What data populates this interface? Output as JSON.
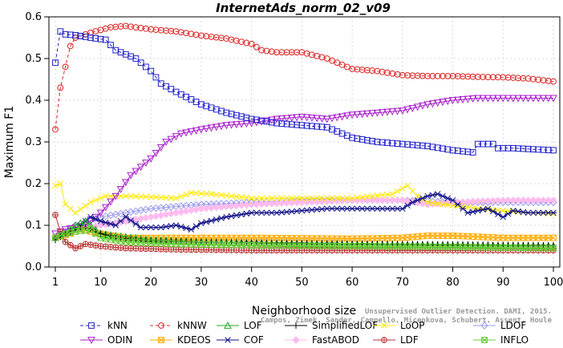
{
  "chart_data": {
    "type": "line",
    "title": "InternetAds_norm_02_v09",
    "xlabel": "Neighborhood size",
    "ylabel": "Maximum F1",
    "xlim": [
      1,
      100
    ],
    "ylim": [
      0,
      0.6
    ],
    "xticks": [
      1,
      10,
      20,
      30,
      40,
      50,
      60,
      70,
      80,
      90,
      100
    ],
    "yticks": [
      0.0,
      0.1,
      0.2,
      0.3,
      0.4,
      0.5,
      0.6
    ],
    "legend_position": "bottom",
    "series": [
      {
        "name": "kNN",
        "color": "#2222cc",
        "marker": "square",
        "dashed": true,
        "step": 1,
        "keyframes": [
          [
            1,
            0.49
          ],
          [
            2,
            0.565
          ],
          [
            3,
            0.558
          ],
          [
            5,
            0.556
          ],
          [
            8,
            0.55
          ],
          [
            11,
            0.545
          ],
          [
            13,
            0.52
          ],
          [
            17,
            0.5
          ],
          [
            20,
            0.47
          ],
          [
            22,
            0.44
          ],
          [
            25,
            0.42
          ],
          [
            30,
            0.39
          ],
          [
            35,
            0.37
          ],
          [
            40,
            0.355
          ],
          [
            45,
            0.345
          ],
          [
            50,
            0.34
          ],
          [
            55,
            0.335
          ],
          [
            60,
            0.31
          ],
          [
            65,
            0.3
          ],
          [
            70,
            0.295
          ],
          [
            75,
            0.29
          ],
          [
            80,
            0.28
          ],
          [
            84,
            0.275
          ],
          [
            85,
            0.295
          ],
          [
            88,
            0.295
          ],
          [
            89,
            0.285
          ],
          [
            92,
            0.285
          ],
          [
            95,
            0.283
          ],
          [
            100,
            0.28
          ]
        ]
      },
      {
        "name": "kNNW",
        "color": "#dd2222",
        "marker": "circle",
        "dashed": true,
        "step": 1,
        "keyframes": [
          [
            1,
            0.33
          ],
          [
            2,
            0.43
          ],
          [
            3,
            0.48
          ],
          [
            4,
            0.53
          ],
          [
            5,
            0.55
          ],
          [
            8,
            0.562
          ],
          [
            12,
            0.575
          ],
          [
            15,
            0.578
          ],
          [
            20,
            0.57
          ],
          [
            25,
            0.565
          ],
          [
            30,
            0.555
          ],
          [
            35,
            0.548
          ],
          [
            40,
            0.535
          ],
          [
            42,
            0.52
          ],
          [
            45,
            0.515
          ],
          [
            50,
            0.515
          ],
          [
            55,
            0.5
          ],
          [
            60,
            0.475
          ],
          [
            65,
            0.47
          ],
          [
            70,
            0.46
          ],
          [
            75,
            0.458
          ],
          [
            80,
            0.458
          ],
          [
            85,
            0.456
          ],
          [
            90,
            0.455
          ],
          [
            95,
            0.452
          ],
          [
            100,
            0.445
          ]
        ]
      },
      {
        "name": "LOF",
        "color": "#22aa22",
        "marker": "triangle-up",
        "dashed": false,
        "step": 1,
        "keyframes": [
          [
            1,
            0.07
          ],
          [
            3,
            0.08
          ],
          [
            5,
            0.1
          ],
          [
            7,
            0.11
          ],
          [
            10,
            0.08
          ],
          [
            13,
            0.075
          ],
          [
            20,
            0.065
          ],
          [
            30,
            0.06
          ],
          [
            50,
            0.055
          ],
          [
            70,
            0.053
          ],
          [
            100,
            0.05
          ]
        ]
      },
      {
        "name": "SimplifiedLOF",
        "color": "#000000",
        "marker": "plus",
        "dashed": false,
        "step": 1,
        "keyframes": [
          [
            1,
            0.065
          ],
          [
            3,
            0.08
          ],
          [
            5,
            0.09
          ],
          [
            7,
            0.095
          ],
          [
            10,
            0.08
          ],
          [
            13,
            0.07
          ],
          [
            20,
            0.062
          ],
          [
            30,
            0.06
          ],
          [
            50,
            0.058
          ],
          [
            70,
            0.055
          ],
          [
            100,
            0.052
          ]
        ]
      },
      {
        "name": "LoOP",
        "color": "#ffe800",
        "marker": "x",
        "dashed": false,
        "step": 1,
        "keyframes": [
          [
            1,
            0.195
          ],
          [
            2,
            0.2
          ],
          [
            3,
            0.15
          ],
          [
            5,
            0.13
          ],
          [
            8,
            0.155
          ],
          [
            11,
            0.17
          ],
          [
            15,
            0.17
          ],
          [
            20,
            0.168
          ],
          [
            25,
            0.165
          ],
          [
            28,
            0.178
          ],
          [
            32,
            0.175
          ],
          [
            40,
            0.165
          ],
          [
            50,
            0.165
          ],
          [
            60,
            0.165
          ],
          [
            68,
            0.175
          ],
          [
            71,
            0.195
          ],
          [
            73,
            0.17
          ],
          [
            75,
            0.155
          ],
          [
            78,
            0.15
          ],
          [
            82,
            0.145
          ],
          [
            85,
            0.14
          ],
          [
            90,
            0.135
          ],
          [
            95,
            0.13
          ],
          [
            100,
            0.128
          ]
        ]
      },
      {
        "name": "LDOF",
        "color": "#9999ee",
        "marker": "diamond",
        "dashed": false,
        "step": 1,
        "keyframes": [
          [
            1,
            0.07
          ],
          [
            5,
            0.1
          ],
          [
            10,
            0.12
          ],
          [
            15,
            0.13
          ],
          [
            20,
            0.14
          ],
          [
            30,
            0.15
          ],
          [
            40,
            0.155
          ],
          [
            50,
            0.16
          ],
          [
            60,
            0.16
          ],
          [
            70,
            0.16
          ],
          [
            80,
            0.155
          ],
          [
            90,
            0.155
          ],
          [
            100,
            0.155
          ]
        ]
      },
      {
        "name": "ODIN",
        "color": "#aa22cc",
        "marker": "triangle-down",
        "dashed": false,
        "step": 1,
        "keyframes": [
          [
            1,
            0.08
          ],
          [
            3,
            0.09
          ],
          [
            7,
            0.1
          ],
          [
            10,
            0.13
          ],
          [
            13,
            0.17
          ],
          [
            16,
            0.22
          ],
          [
            20,
            0.26
          ],
          [
            23,
            0.3
          ],
          [
            26,
            0.32
          ],
          [
            30,
            0.33
          ],
          [
            35,
            0.34
          ],
          [
            40,
            0.345
          ],
          [
            45,
            0.355
          ],
          [
            50,
            0.36
          ],
          [
            55,
            0.355
          ],
          [
            60,
            0.365
          ],
          [
            65,
            0.37
          ],
          [
            70,
            0.375
          ],
          [
            75,
            0.39
          ],
          [
            80,
            0.4
          ],
          [
            85,
            0.405
          ],
          [
            90,
            0.405
          ],
          [
            95,
            0.405
          ],
          [
            100,
            0.405
          ]
        ]
      },
      {
        "name": "KDEOS",
        "color": "#ffaa00",
        "marker": "box-x",
        "dashed": false,
        "step": 1,
        "keyframes": [
          [
            1,
            0.07
          ],
          [
            4,
            0.08
          ],
          [
            6,
            0.09
          ],
          [
            10,
            0.08
          ],
          [
            15,
            0.07
          ],
          [
            25,
            0.07
          ],
          [
            40,
            0.07
          ],
          [
            60,
            0.068
          ],
          [
            70,
            0.07
          ],
          [
            75,
            0.075
          ],
          [
            80,
            0.075
          ],
          [
            90,
            0.07
          ],
          [
            100,
            0.07
          ]
        ]
      },
      {
        "name": "COF",
        "color": "#111188",
        "marker": "star",
        "dashed": false,
        "step": 1,
        "keyframes": [
          [
            1,
            0.07
          ],
          [
            4,
            0.08
          ],
          [
            6,
            0.1
          ],
          [
            8,
            0.12
          ],
          [
            10,
            0.11
          ],
          [
            13,
            0.1
          ],
          [
            15,
            0.12
          ],
          [
            18,
            0.095
          ],
          [
            22,
            0.095
          ],
          [
            25,
            0.1
          ],
          [
            28,
            0.09
          ],
          [
            30,
            0.105
          ],
          [
            35,
            0.12
          ],
          [
            40,
            0.13
          ],
          [
            45,
            0.13
          ],
          [
            50,
            0.135
          ],
          [
            55,
            0.14
          ],
          [
            60,
            0.14
          ],
          [
            65,
            0.14
          ],
          [
            70,
            0.14
          ],
          [
            72,
            0.155
          ],
          [
            75,
            0.17
          ],
          [
            77,
            0.175
          ],
          [
            80,
            0.16
          ],
          [
            83,
            0.13
          ],
          [
            87,
            0.14
          ],
          [
            90,
            0.12
          ],
          [
            92,
            0.135
          ],
          [
            95,
            0.13
          ],
          [
            100,
            0.13
          ]
        ]
      },
      {
        "name": "FastABOD",
        "color": "#ffbbee",
        "marker": "diamond-filled",
        "dashed": false,
        "step": 1,
        "keyframes": [
          [
            1,
            0.07
          ],
          [
            5,
            0.09
          ],
          [
            10,
            0.1
          ],
          [
            15,
            0.11
          ],
          [
            20,
            0.12
          ],
          [
            30,
            0.14
          ],
          [
            40,
            0.15
          ],
          [
            50,
            0.155
          ],
          [
            60,
            0.16
          ],
          [
            70,
            0.16
          ],
          [
            75,
            0.15
          ],
          [
            80,
            0.155
          ],
          [
            90,
            0.16
          ],
          [
            100,
            0.16
          ]
        ]
      },
      {
        "name": "LDF",
        "color": "#bb3333",
        "marker": "circle-plus",
        "dashed": false,
        "step": 1,
        "keyframes": [
          [
            1,
            0.125
          ],
          [
            2,
            0.085
          ],
          [
            3,
            0.06
          ],
          [
            5,
            0.045
          ],
          [
            7,
            0.055
          ],
          [
            10,
            0.05
          ],
          [
            15,
            0.045
          ],
          [
            25,
            0.042
          ],
          [
            40,
            0.04
          ],
          [
            60,
            0.04
          ],
          [
            80,
            0.04
          ],
          [
            100,
            0.04
          ]
        ]
      },
      {
        "name": "INFLO",
        "color": "#66cc33",
        "marker": "box-x",
        "dashed": false,
        "step": 1,
        "keyframes": [
          [
            1,
            0.07
          ],
          [
            3,
            0.08
          ],
          [
            5,
            0.085
          ],
          [
            8,
            0.09
          ],
          [
            10,
            0.07
          ],
          [
            15,
            0.06
          ],
          [
            25,
            0.055
          ],
          [
            40,
            0.052
          ],
          [
            60,
            0.05
          ],
          [
            80,
            0.048
          ],
          [
            100,
            0.045
          ]
        ]
      }
    ]
  },
  "citation": {
    "line1": "Unsupervised Outlier Detection. DAMI, 2015.",
    "line2": "Campos, Zimek, Sander, Campello, Micenkova, Schubert, Assent, Houle"
  }
}
